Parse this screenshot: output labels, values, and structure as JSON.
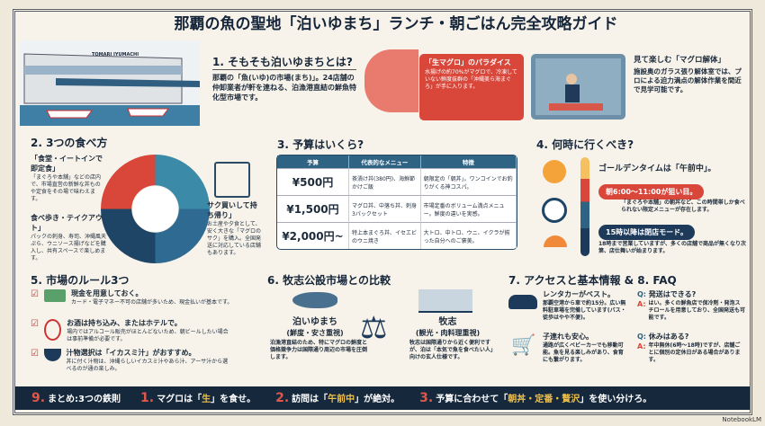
{
  "title": "那覇の魚の聖地「泊いゆまち」ランチ・朝ごはん完全攻略ガイド",
  "colors": {
    "navy": "#16283c",
    "red": "#d9473b",
    "teal": "#2e8aa6",
    "blue": "#2e6384",
    "gold": "#f0c04a"
  },
  "s1": {
    "building_sign": "TOMARI IYUMACHI",
    "heading": "1. そもそも泊いゆまちとは?",
    "body": "那覇の「魚(いゆ)の市場(まち)」。24店舗の仲卸業者が軒を連ねる、泊漁港直結の鮮魚特化型市場です。",
    "callout_title": "「生マグロ」のパラダイス",
    "callout_body": "水揚げの約70%がマグロで、冷凍していない鮮度抜群の「沖縄美ら海まぐろ」が手に入ります。",
    "photo_title": "見て楽しむ「マグロ解体」",
    "photo_body": "施設奥のガラス張り解体室では、プロによる迫力満点の解体作業を間近で見学可能です。"
  },
  "s2": {
    "heading": "2. 3つの食べ方",
    "ways": [
      {
        "title": "「食堂・イートインで即定食」",
        "body": "「まぐろや本舗」などの店内で、市場直営の新鮮な丼ものや定食をその場で味わえます。"
      },
      {
        "title": "食べ歩き・テイクアウト」",
        "body": "パックの刺身、寿司、沖縄風天ぷら、ウニソース揚げなどを購入し、共有スペースで楽しめます。"
      },
      {
        "title": "サク買いして持ち帰り」",
        "body": "お土産や夕食として、安く大きな「マグロのサク」を購入。全国発送に対応している店舗もあります。"
      }
    ]
  },
  "s3": {
    "heading": "3. 予算はいくら?",
    "columns": [
      "予算",
      "代表的なメニュー",
      "特徴"
    ],
    "rows": [
      {
        "price": "¥500円",
        "menu": "茶漬け丼(380円)、海鮮節かけご飯",
        "feature": "朝限定の「朝丼」。ワンコインでお釣りがくる神コスパ。"
      },
      {
        "price": "¥1,500円",
        "menu": "マグロ丼、中落ち丼、刺身3パックセット",
        "feature": "市場定番のボリューム満点メニュー。鮮度の違いを実感。"
      },
      {
        "price": "¥2,000円~",
        "menu": "特上本まぐろ丼、イセエビのウニ焼き",
        "feature": "大トロ、中トロ、ウニ、イクラが揃った自分へのご褒美。"
      }
    ]
  },
  "s4": {
    "heading": "4. 何時に行くべき?",
    "golden": "ゴールデンタイムは「午前中」。",
    "morning": "朝6:00〜11:00が狙い目。",
    "morning_body": "「まぐろや本舗」の朝丼など、この時間帯しか食べられない限定メニューが存在します。",
    "afternoon": "15時以降は閉店モード。",
    "afternoon_body": "18時まで営業していますが、多くの店舗で商品が無くなり次第、店仕舞いが始まります。"
  },
  "s5": {
    "heading": "5. 市場のルール3つ",
    "rules": [
      {
        "title": "現金を用意しておく。",
        "body": "カード・電子マネー不可の店舗が多いため、現金払いが基本です。"
      },
      {
        "title": "お酒は持ち込み、またはホテルで。",
        "body": "場内ではアルコール販売がほとんどないため、朝ビールしたい場合は事前準備が必要です。"
      },
      {
        "title": "汁物選択は「イカスミ汁」がおすすめ。",
        "body": "丼に付く汁物は、沖縄らしいイカスミ汁やあら汁、アーサ汁から選べるのが通の楽しみ。"
      }
    ]
  },
  "s6": {
    "heading": "6. 牧志公設市場との比較",
    "left": {
      "name": "泊いゆまち",
      "tag": "(鮮度・安さ重視)",
      "body": "泊漁港直結のため、特にマグロの鮮度と価格競争力は国際通り周辺の市場を圧倒します。"
    },
    "right": {
      "name": "牧志",
      "tag": "(観光・肉料理重視)",
      "body": "牧志は国際通りから近く便利ですが、泊は「本気で魚を食べたい人」向けの玄人仕様です。"
    }
  },
  "s7": {
    "heading": "7. アクセスと基本情報 & 8. FAQ",
    "info": [
      {
        "title": "レンタカーがベスト。",
        "body": "那覇空港から車で約15分。広い無料駐車場を完備しています(バス・徒歩はやや不便)。"
      },
      {
        "title": "子連れも安心。",
        "body": "通路が広くベビーカーでも移動可能。魚を見る楽しみがあり、食育にも繋がります。"
      }
    ],
    "faq": [
      {
        "q": "発送はできる?",
        "a": "はい。多くの鮮魚店で保冷剤・発泡スチロールを用意しており、全国発送も可能です。"
      },
      {
        "q": "休みはある?",
        "a": "年中無休(6時〜18時)ですが、店舗ごとに個別の定休日がある場合があります。"
      }
    ],
    "q_label": "Q:",
    "a_label": "A:"
  },
  "footer": {
    "n9": "9.",
    "summary": "まとめ:3つの鉄則",
    "rules": [
      {
        "n": "1.",
        "pre": "マグロは「",
        "hl": "生",
        "post": "」を食せ。"
      },
      {
        "n": "2.",
        "pre": "訪問は「",
        "hl": "午前中",
        "post": "」が絶対。"
      },
      {
        "n": "3.",
        "pre": "予算に合わせて「",
        "hl": "朝丼・定番・贅沢",
        "post": "」を使い分けろ。"
      }
    ]
  },
  "credit": "NotebookLM"
}
